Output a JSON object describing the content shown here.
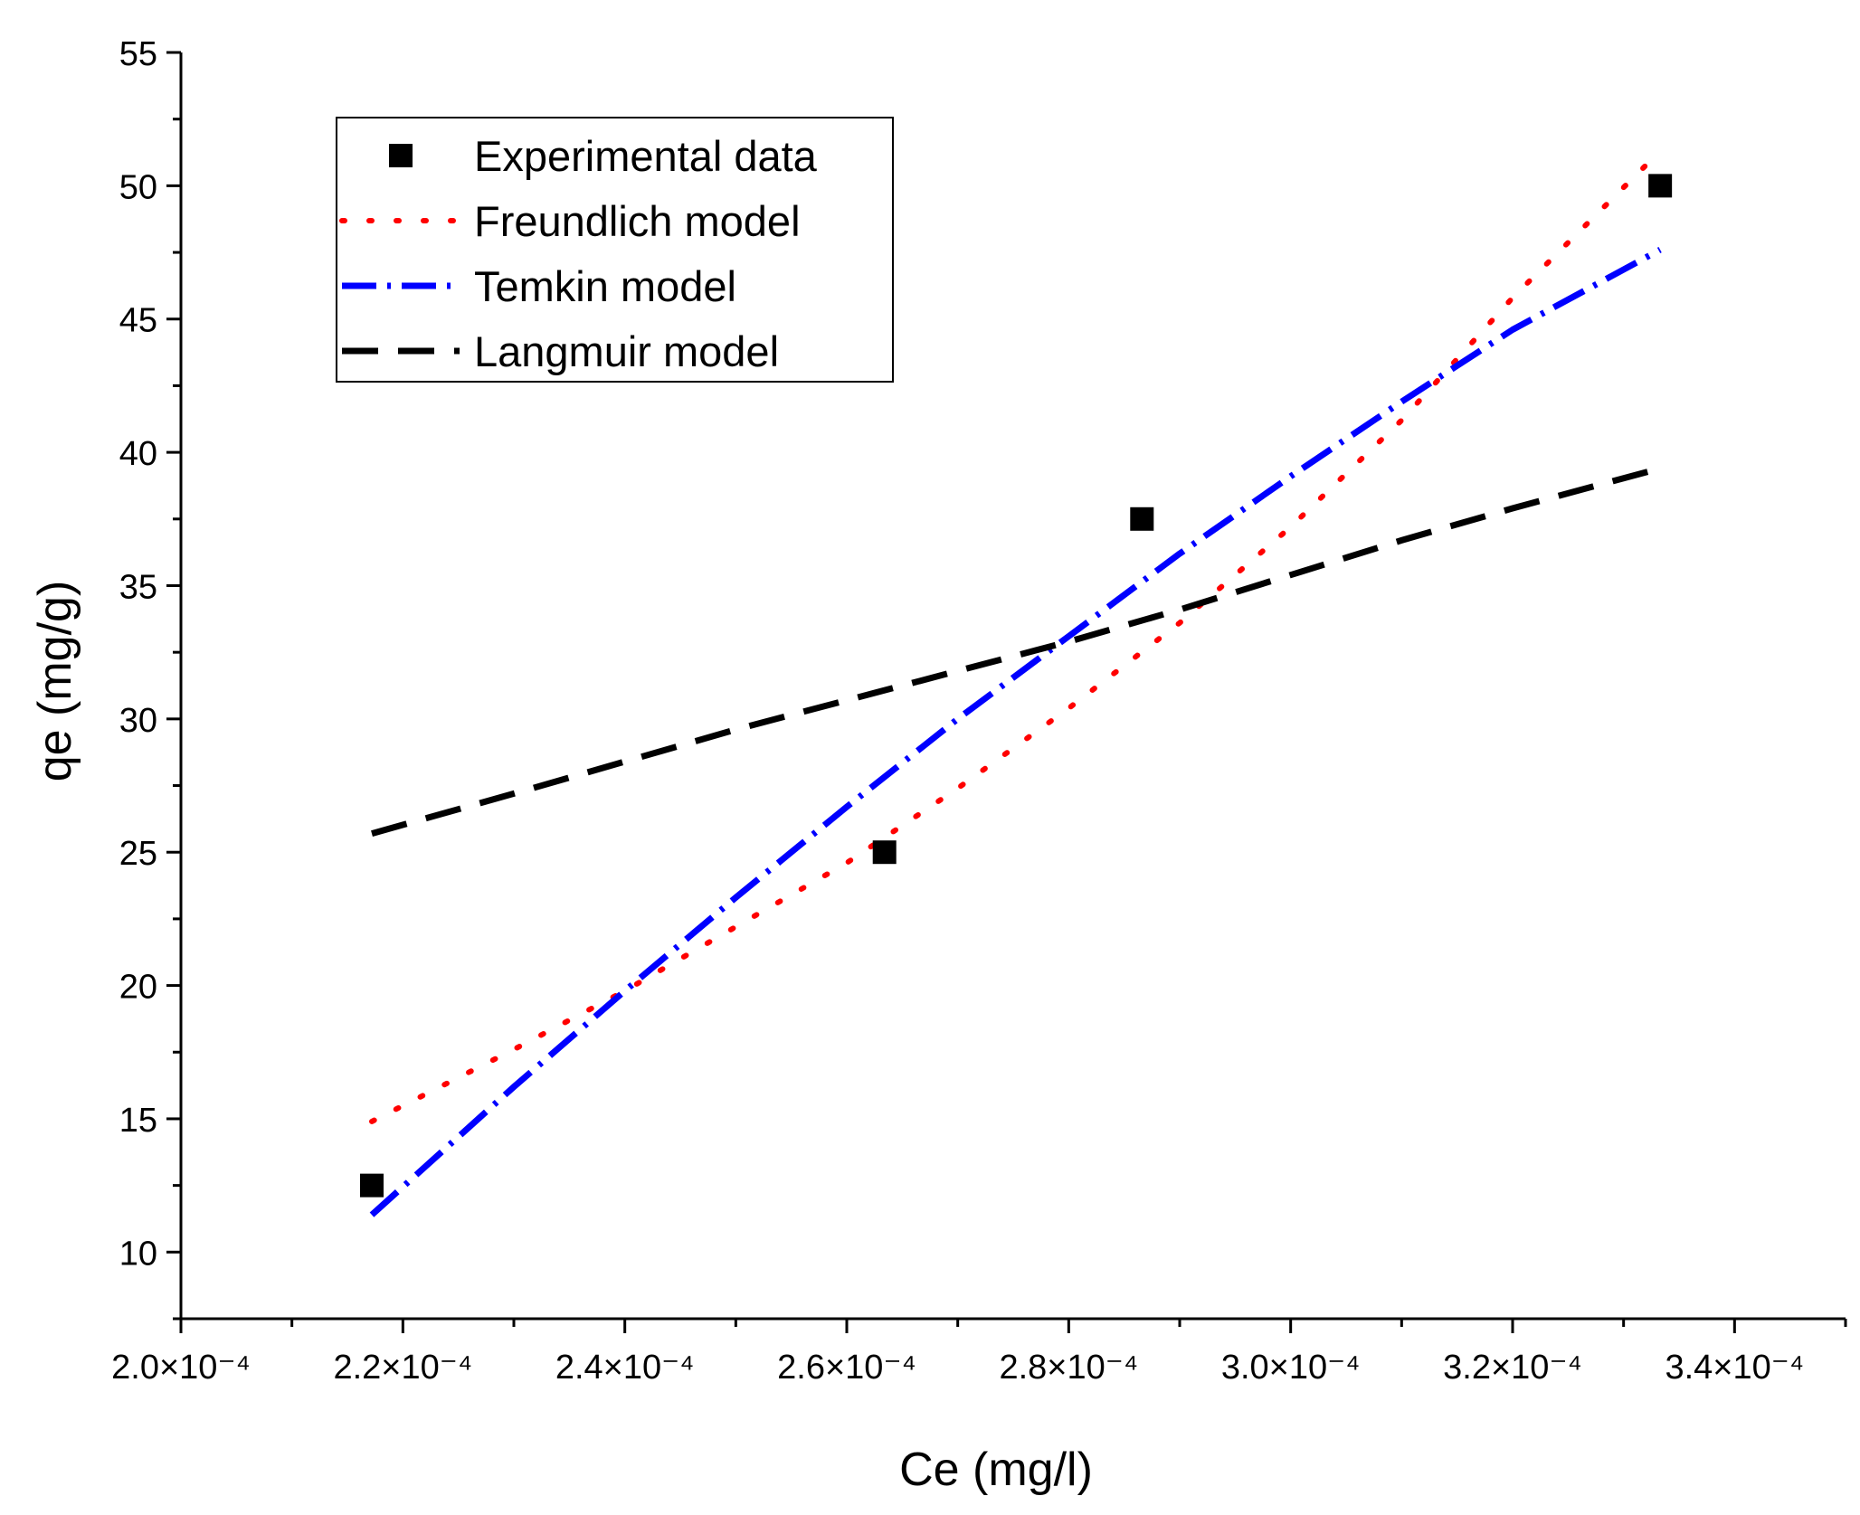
{
  "chart_data": {
    "type": "scatter",
    "title": "",
    "xlabel": "Ce (mg/l)",
    "ylabel": "qe (mg/g)",
    "xlim": [
      0.0002,
      0.00035
    ],
    "ylim": [
      7.5,
      55
    ],
    "x_ticks": [
      0.0002,
      0.00022,
      0.00024,
      0.00026,
      0.00028,
      0.0003,
      0.00032,
      0.00034
    ],
    "x_tick_labels": [
      "2.0×10⁻⁴",
      "2.2×10⁻⁴",
      "2.4×10⁻⁴",
      "2.6×10⁻⁴",
      "2.8×10⁻⁴",
      "3.0×10⁻⁴",
      "3.2×10⁻⁴",
      "3.4×10⁻⁴"
    ],
    "y_ticks": [
      10,
      15,
      20,
      25,
      30,
      35,
      40,
      45,
      50,
      55
    ],
    "y_tick_labels": [
      "10",
      "15",
      "20",
      "25",
      "30",
      "35",
      "40",
      "45",
      "50",
      "55"
    ],
    "grid": false,
    "legend_position": "top-left",
    "series": [
      {
        "name": "Experimental data",
        "kind": "markers",
        "marker": "square",
        "color": "#000000",
        "x": [
          0.0002172,
          0.0002634,
          0.0002866,
          0.0003333
        ],
        "y": [
          12.5,
          25.0,
          37.5,
          50.0
        ]
      },
      {
        "name": "Freundlich model",
        "kind": "line",
        "style": "dotted",
        "color": "#ff0000",
        "x": [
          0.0002172,
          0.00023,
          0.00024,
          0.00025,
          0.00026,
          0.00027,
          0.00028,
          0.00029,
          0.0003,
          0.00031,
          0.00032,
          0.0003333
        ],
        "y": [
          14.9,
          17.6,
          19.8,
          22.2,
          24.6,
          27.4,
          30.4,
          33.6,
          37.2,
          41.2,
          45.8,
          51.3
        ]
      },
      {
        "name": "Temkin model",
        "kind": "line",
        "style": "dash-dot",
        "color": "#0000ff",
        "x": [
          0.0002172,
          0.00023,
          0.00024,
          0.00025,
          0.00026,
          0.00027,
          0.00028,
          0.00029,
          0.0003,
          0.00031,
          0.00032,
          0.0003333
        ],
        "y": [
          11.4,
          16.2,
          19.8,
          23.3,
          26.7,
          30.0,
          33.1,
          36.2,
          39.1,
          41.9,
          44.6,
          47.6
        ]
      },
      {
        "name": "Langmuir model",
        "kind": "line",
        "style": "dashed",
        "color": "#000000",
        "x": [
          0.0002172,
          0.00023,
          0.00024,
          0.00025,
          0.00026,
          0.00027,
          0.00028,
          0.00029,
          0.0003,
          0.00031,
          0.00032,
          0.0003333
        ],
        "y": [
          25.7,
          27.2,
          28.4,
          29.6,
          30.7,
          31.8,
          32.9,
          34.1,
          35.4,
          36.7,
          37.9,
          39.4
        ]
      }
    ]
  }
}
